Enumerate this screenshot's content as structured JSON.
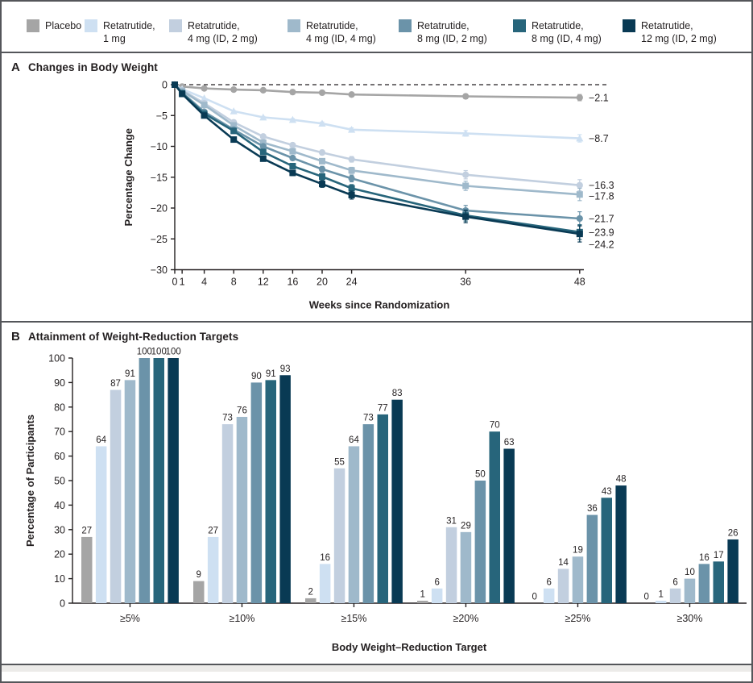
{
  "legend": {
    "items": [
      {
        "line1": "Placebo",
        "line2": "",
        "color": "#a5a5a5"
      },
      {
        "line1": "Retatrutide,",
        "line2": "1 mg",
        "color": "#cee0f2"
      },
      {
        "line1": "Retatrutide,",
        "line2": "4 mg (ID, 2 mg)",
        "color": "#c2cfdf"
      },
      {
        "line1": "Retatrutide,",
        "line2": "4 mg (ID, 4 mg)",
        "color": "#9fb9cb"
      },
      {
        "line1": "Retatrutide,",
        "line2": "8 mg (ID, 2 mg)",
        "color": "#6b93a9"
      },
      {
        "line1": "Retatrutide,",
        "line2": "8 mg (ID, 4 mg)",
        "color": "#27657b"
      },
      {
        "line1": "Retatrutide,",
        "line2": "12 mg (ID, 2 mg)",
        "color": "#093a54"
      }
    ]
  },
  "chart_data": [
    {
      "type": "line",
      "panel": "A",
      "title": "Changes in Body Weight",
      "xlabel": "Weeks since Randomization",
      "ylabel": "Percentage Change",
      "x": [
        0,
        1,
        4,
        8,
        12,
        16,
        20,
        24,
        36,
        48
      ],
      "ylim": [
        -30,
        0
      ],
      "yticks": [
        0,
        -5,
        -10,
        -15,
        -20,
        -25,
        -30
      ],
      "zero_line": "dashed",
      "series": [
        {
          "name": "Placebo",
          "color": "#a5a5a5",
          "marker": "circle",
          "end_label": "−2.1",
          "end_label_dy": 0,
          "se_end": 0.5,
          "values": [
            0,
            -0.3,
            -0.6,
            -0.8,
            -0.9,
            -1.2,
            -1.3,
            -1.6,
            -1.9,
            -2.1
          ]
        },
        {
          "name": "Retatrutide, 1 mg",
          "color": "#cee0f2",
          "marker": "triangle",
          "end_label": "−8.7",
          "end_label_dy": 0,
          "se_end": 0.6,
          "values": [
            0,
            -0.7,
            -2.2,
            -4.3,
            -5.3,
            -5.7,
            -6.3,
            -7.3,
            -7.9,
            -8.7
          ]
        },
        {
          "name": "Retatrutide, 4 mg (ID, 2 mg)",
          "color": "#c2cfdf",
          "marker": "circle",
          "end_label": "−16.3",
          "end_label_dy": 0,
          "se_end": 0.9,
          "values": [
            0,
            -0.9,
            -3.0,
            -6.1,
            -8.4,
            -9.8,
            -11.0,
            -12.1,
            -14.6,
            -16.3
          ]
        },
        {
          "name": "Retatrutide, 4 mg (ID, 4 mg)",
          "color": "#9fb9cb",
          "marker": "square",
          "end_label": "−17.8",
          "end_label_dy": 2,
          "se_end": 1.0,
          "values": [
            0,
            -1.0,
            -3.3,
            -6.6,
            -9.4,
            -10.8,
            -12.4,
            -13.9,
            -16.4,
            -17.8
          ]
        },
        {
          "name": "Retatrutide, 8 mg (ID, 2 mg)",
          "color": "#6b93a9",
          "marker": "circle",
          "end_label": "−21.7",
          "end_label_dy": 0,
          "se_end": 1.1,
          "values": [
            0,
            -1.3,
            -4.4,
            -7.3,
            -10.0,
            -11.9,
            -13.7,
            -15.2,
            -20.4,
            -21.7
          ]
        },
        {
          "name": "Retatrutide, 8 mg (ID, 4 mg)",
          "color": "#27657b",
          "marker": "square",
          "end_label": "−23.9",
          "end_label_dy": 0,
          "se_end": 1.2,
          "values": [
            0,
            -1.4,
            -4.7,
            -7.5,
            -10.9,
            -13.2,
            -14.9,
            -16.8,
            -21.2,
            -23.9
          ]
        },
        {
          "name": "Retatrutide, 12 mg (ID, 2 mg)",
          "color": "#093a54",
          "marker": "square",
          "end_label": "−24.2",
          "end_label_dy": 13,
          "se_end": 1.3,
          "values": [
            0,
            -1.5,
            -5.0,
            -8.9,
            -12.0,
            -14.3,
            -16.1,
            -17.9,
            -21.4,
            -24.2
          ]
        }
      ]
    },
    {
      "type": "bar",
      "panel": "B",
      "title": "Attainment of Weight-Reduction Targets",
      "xlabel": "Body Weight–Reduction Target",
      "ylabel": "Percentage of Participants",
      "categories": [
        "≥5%",
        "≥10%",
        "≥15%",
        "≥20%",
        "≥25%",
        "≥30%"
      ],
      "ylim": [
        0,
        100
      ],
      "ytick_step": 10,
      "series": [
        {
          "name": "Placebo",
          "color": "#a5a5a5",
          "values": [
            27,
            9,
            2,
            1,
            0,
            0
          ]
        },
        {
          "name": "Retatrutide, 1 mg",
          "color": "#cee0f2",
          "values": [
            64,
            27,
            16,
            6,
            6,
            1
          ]
        },
        {
          "name": "Retatrutide, 4 mg (ID, 2 mg)",
          "color": "#c2cfdf",
          "values": [
            87,
            73,
            55,
            31,
            14,
            6
          ]
        },
        {
          "name": "Retatrutide, 4 mg (ID, 4 mg)",
          "color": "#9fb9cb",
          "values": [
            91,
            76,
            64,
            29,
            19,
            10
          ]
        },
        {
          "name": "Retatrutide, 8 mg (ID, 2 mg)",
          "color": "#6b93a9",
          "values": [
            100,
            90,
            73,
            50,
            36,
            16
          ]
        },
        {
          "name": "Retatrutide, 8 mg (ID, 4 mg)",
          "color": "#27657b",
          "values": [
            100,
            91,
            77,
            70,
            43,
            17
          ]
        },
        {
          "name": "Retatrutide, 12 mg (ID, 2 mg)",
          "color": "#093a54",
          "values": [
            100,
            93,
            83,
            63,
            48,
            26
          ]
        }
      ]
    }
  ]
}
